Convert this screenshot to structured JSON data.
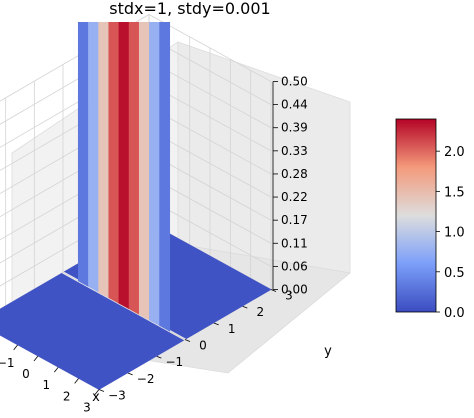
{
  "chart_data": {
    "type": "surface",
    "title": "stdx=1, stdy=0.001",
    "xlabel": "x",
    "ylabel": "y",
    "zlabel": "",
    "function": "bivariate normal density, mean (0,0), sigma_x = 1, sigma_y = 0.001",
    "xlim": [
      -3,
      3
    ],
    "ylim": [
      -3,
      3
    ],
    "zlim": [
      0,
      0.5
    ],
    "x_ticks": [
      "−3",
      "−2",
      "−1",
      "0",
      "1",
      "2",
      "3"
    ],
    "y_ticks": [
      "−3",
      "−2",
      "−1",
      "0",
      "1",
      "2",
      "3"
    ],
    "z_ticks": [
      "0.00",
      "0.06",
      "0.11",
      "0.17",
      "0.22",
      "0.28",
      "0.33",
      "0.39",
      "0.44",
      "0.50"
    ],
    "colormap": "coolwarm",
    "colorbar": {
      "min": 0.0,
      "max": 2.4,
      "ticks": [
        "0.0",
        "0.5",
        "1.0",
        "1.5",
        "2.0"
      ],
      "tick_values": [
        0,
        0.5,
        1.0,
        1.5,
        2.0
      ]
    },
    "colors": {
      "low": "#3b4cc0",
      "mid": "#dddddd",
      "high": "#b40426"
    },
    "x_strips": [
      -2.0,
      -1.5,
      -1.0,
      -0.5,
      0.0,
      0.5,
      1.0,
      1.5,
      2.0
    ],
    "strip_density_values": [
      0.054,
      0.13,
      0.242,
      0.352,
      0.399,
      0.352,
      0.242,
      0.13,
      0.054
    ],
    "grid": true
  }
}
